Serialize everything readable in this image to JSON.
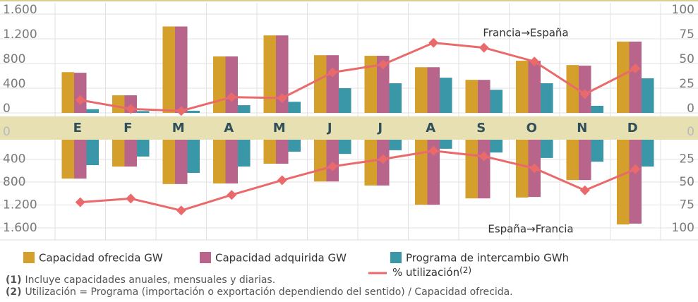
{
  "chart_data": {
    "type": "bar",
    "categories": [
      "E",
      "F",
      "M",
      "A",
      "M",
      "J",
      "J",
      "A",
      "S",
      "O",
      "N",
      "D"
    ],
    "legend": [
      {
        "name": "Capacidad ofrecida GW",
        "color": "#d49f2b"
      },
      {
        "name": "Capacidad adquirida GW",
        "color": "#b8648b"
      },
      {
        "name": "Programa de intercambio GWh",
        "color": "#3a97a8"
      },
      {
        "name": "% utilización",
        "ref": "(2)",
        "color": "#ea6a6c"
      }
    ],
    "grid": true,
    "panels": [
      {
        "title": "Francia→España",
        "direction": "up",
        "ylim": [
          0,
          1600
        ],
        "yticks": [
          0,
          400,
          800,
          {
            "value": 1200,
            "label": "1.200"
          },
          {
            "value": 1600,
            "label": "1.600"
          }
        ],
        "y2lim": [
          0,
          100
        ],
        "y2ticks": [
          0,
          25,
          50,
          75,
          100
        ],
        "series": [
          {
            "values": [
              660,
              285,
              1400,
              915,
              1255,
              935,
              925,
              740,
              535,
              845,
              775,
              1155
            ]
          },
          {
            "values": [
              650,
              285,
              1400,
              915,
              1255,
              935,
              925,
              740,
              535,
              845,
              765,
              1155
            ]
          },
          {
            "values": [
              60,
              30,
              35,
              125,
              180,
              400,
              480,
              570,
              375,
              480,
              115,
              560
            ]
          },
          {
            "values": [
              13,
              4,
              2,
              16,
              15,
              41,
              49,
              71,
              66,
              52,
              19,
              45
            ],
            "axis": "y2"
          }
        ]
      },
      {
        "title": "España→Francia",
        "direction": "down",
        "ylim": [
          0,
          1600
        ],
        "yticks": [
          0,
          400,
          800,
          {
            "value": 1200,
            "label": "1.200"
          },
          {
            "value": 1600,
            "label": "1.600"
          }
        ],
        "y2lim": [
          0,
          100
        ],
        "y2ticks": [
          0,
          25,
          50,
          75,
          100
        ],
        "series": [
          {
            "values": [
              740,
              530,
              835,
              825,
              480,
              790,
              860,
              1195,
              1085,
              1070,
              765,
              1540
            ]
          },
          {
            "values": [
              740,
              530,
              835,
              825,
              480,
              790,
              860,
              1195,
              1085,
              1060,
              765,
              1525
            ]
          },
          {
            "values": [
              505,
              355,
              640,
              530,
              270,
              310,
              245,
              220,
              285,
              380,
              445,
              530
            ]
          },
          {
            "values": [
              72,
              68,
              81,
              64,
              48,
              33,
              25,
              16,
              22,
              35,
              59,
              36
            ],
            "axis": "y2"
          }
        ]
      }
    ],
    "notes": [
      {
        "ref": "(1)",
        "text": "Incluye capacidades anuales, mensuales y diarias."
      },
      {
        "ref": "(2)",
        "text": "Utilización = Programa (importación o exportación dependiendo del sentido) / Capacidad ofrecida."
      }
    ]
  }
}
